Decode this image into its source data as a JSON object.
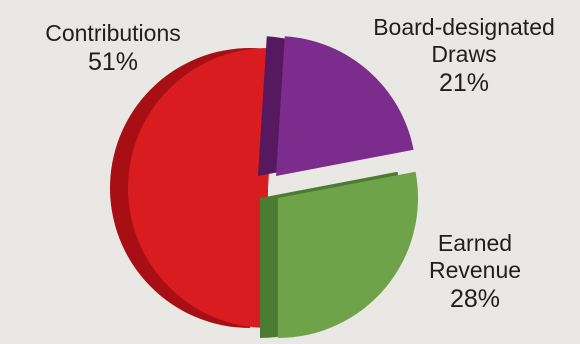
{
  "chart_data": {
    "type": "pie",
    "title": "",
    "slices": [
      {
        "label": "Contributions",
        "value": 51,
        "display": "51%",
        "color": "#d81c1f",
        "side": "#a80f14"
      },
      {
        "label": "Board-designated Draws",
        "value": 21,
        "display": "21%",
        "color": "#7c2c8c",
        "side": "#56195f"
      },
      {
        "label": "Earned Revenue",
        "value": 28,
        "display": "28%",
        "color": "#6ea34a",
        "side": "#4c7c32"
      }
    ]
  },
  "labels": {
    "contributions": {
      "name": "Contributions",
      "pct": "51%"
    },
    "board": {
      "name_line1": "Board-designated",
      "name_line2": "Draws",
      "pct": "21%"
    },
    "earned": {
      "name_line1": "Earned",
      "name_line2": "Revenue",
      "pct": "28%"
    }
  }
}
